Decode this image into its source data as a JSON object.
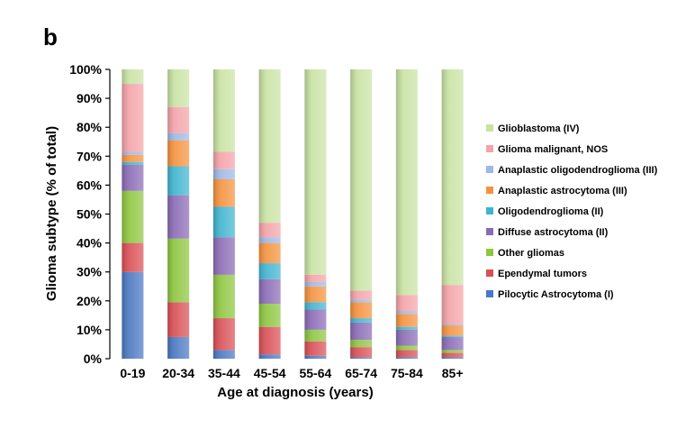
{
  "panel_label": "b",
  "chart_data": {
    "type": "bar",
    "stacked": true,
    "normalized": true,
    "xlabel": "Age at diagnosis (years)",
    "ylabel": "Glioma subtype (% of total)",
    "ylim": [
      0,
      100
    ],
    "yticks": [
      0,
      10,
      20,
      30,
      40,
      50,
      60,
      70,
      80,
      90,
      100
    ],
    "ytick_suffix": "%",
    "legend_position": "right",
    "categories": [
      "0-19",
      "20-34",
      "35-44",
      "45-54",
      "55-64",
      "65-74",
      "75-84",
      "85+"
    ],
    "series": [
      {
        "name": "Pilocytic Astrocytoma (I)",
        "color": "#4a78c2",
        "values": [
          30,
          7.5,
          3,
          1.5,
          1,
          0.5,
          0.5,
          0.5
        ]
      },
      {
        "name": "Ependymal tumors",
        "color": "#d94f55",
        "values": [
          10,
          12,
          11,
          9.5,
          5,
          3.5,
          2.5,
          1.5
        ]
      },
      {
        "name": "Other gliomas",
        "color": "#8dc63f",
        "values": [
          18,
          22,
          15,
          8,
          4,
          2.5,
          1.5,
          1
        ]
      },
      {
        "name": "Diffuse astrocytoma (II)",
        "color": "#8a6bb5",
        "values": [
          9,
          15,
          13,
          8.5,
          7,
          6,
          5.5,
          4.5
        ]
      },
      {
        "name": "Oligodendroglioma (II)",
        "color": "#3fb4d0",
        "values": [
          1,
          10,
          10.5,
          5.5,
          2.5,
          1.5,
          1,
          0.5
        ]
      },
      {
        "name": "Anaplastic astrocytoma (III)",
        "color": "#f5923e",
        "values": [
          2.5,
          9,
          9.5,
          7,
          5.5,
          5.5,
          4.5,
          3.5
        ]
      },
      {
        "name": "Anaplastic oligodendroglioma (III)",
        "color": "#9db8e6",
        "values": [
          1,
          2.5,
          3.5,
          2,
          1.5,
          1,
          1,
          0.5
        ]
      },
      {
        "name": "Glioma malignant, NOS",
        "color": "#f4a3a8",
        "values": [
          23.5,
          9,
          6,
          5,
          2.5,
          3,
          5.5,
          13.5
        ]
      },
      {
        "name": "Glioblastoma (IV)",
        "color": "#c9e3a3",
        "values": [
          5,
          13,
          28.5,
          53,
          71,
          76.5,
          78,
          74.5
        ]
      }
    ]
  }
}
